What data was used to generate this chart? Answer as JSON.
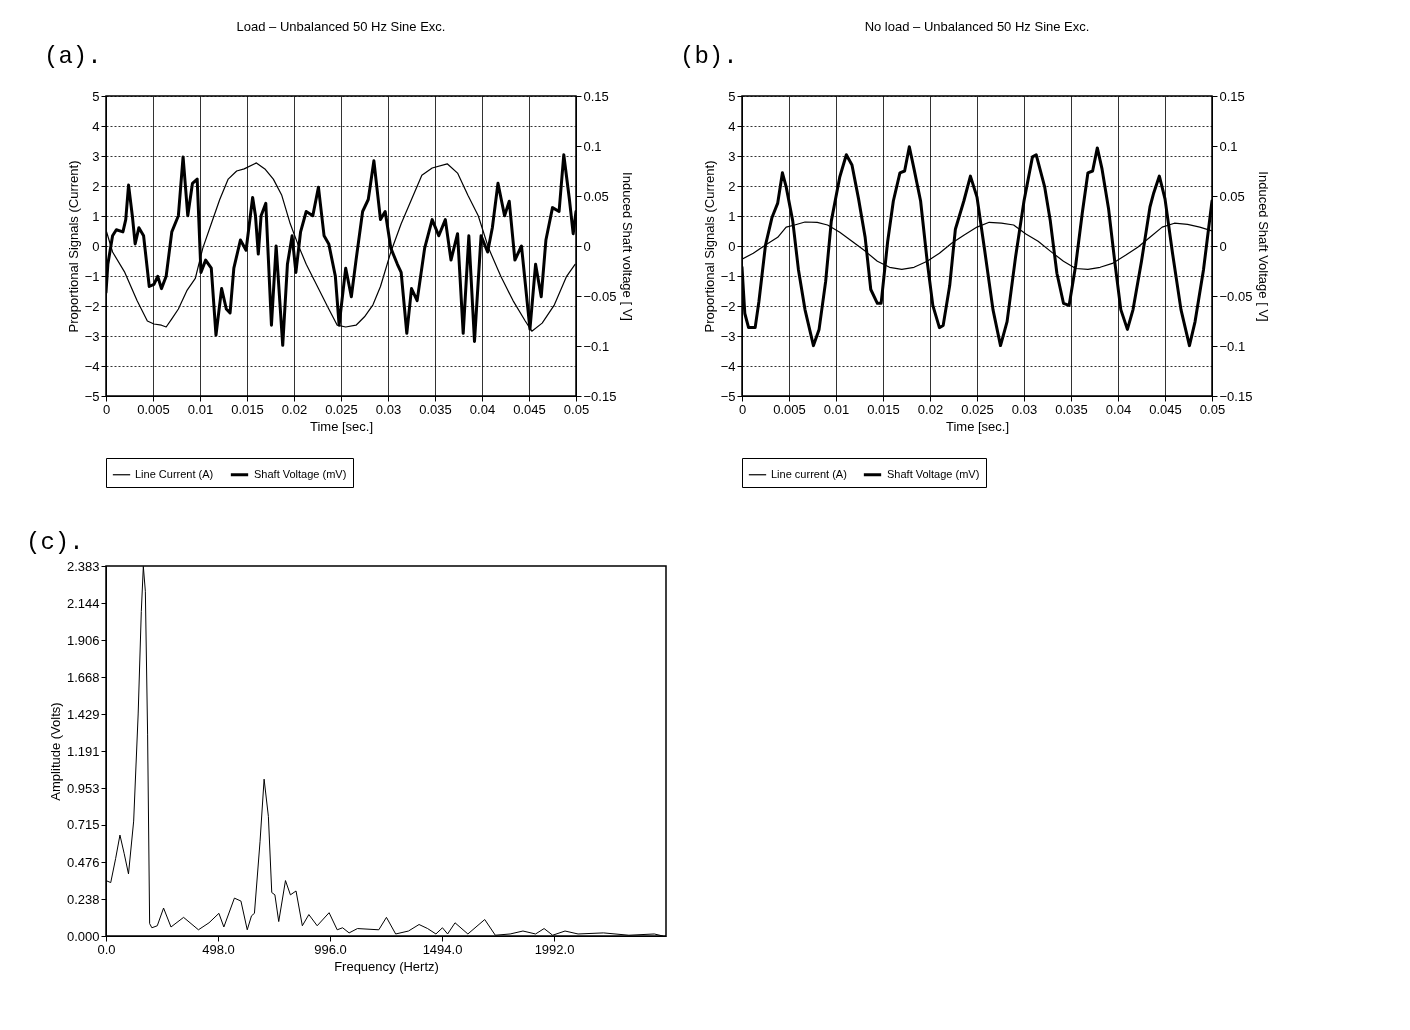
{
  "chart_data": [
    {
      "type": "line",
      "title": "Load – Unbalanced 50 Hz Sine Exc.",
      "xlabel": "Time [sec.]",
      "ylabel": "Proportional Signals (Current)",
      "y2label": "Induced Shaft voltage [ V]",
      "annotations": [
        "(a)."
      ],
      "xlim": [
        0,
        0.05
      ],
      "xticks": [
        0,
        0.005,
        0.01,
        0.015,
        0.02,
        0.025,
        0.03,
        0.035,
        0.04,
        0.045,
        0.05
      ],
      "ylim": [
        -5,
        5
      ],
      "yticks": [
        -5,
        -4,
        -3,
        -2,
        -1,
        0,
        1,
        2,
        3,
        4,
        5
      ],
      "y2lim": [
        -0.15,
        0.15
      ],
      "y2ticks": [
        -0.15,
        -0.1,
        -0.05,
        0,
        0.05,
        0.1,
        0.15
      ],
      "grid": true,
      "legend": "bottom",
      "series": [
        {
          "name": "Line Current (A)",
          "color": "#000000",
          "x": [
            0,
            0.0007,
            0.002,
            0.0033,
            0.0044,
            0.0051,
            0.0059,
            0.0064,
            0.007,
            0.0077,
            0.0086,
            0.0095,
            0.0103,
            0.0112,
            0.0121,
            0.013,
            0.0139,
            0.0147,
            0.016,
            0.0169,
            0.0178,
            0.0187,
            0.0196,
            0.0204,
            0.0213,
            0.0226,
            0.0237,
            0.0246,
            0.0255,
            0.0266,
            0.0275,
            0.0284,
            0.0292,
            0.0303,
            0.0314,
            0.0325,
            0.0336,
            0.0347,
            0.0363,
            0.0374,
            0.0385,
            0.0396,
            0.0407,
            0.042,
            0.0433,
            0.0446,
            0.0453,
            0.0464,
            0.0477,
            0.049,
            0.0499
          ],
          "values": [
            0.54,
            -0.2,
            -0.88,
            -1.82,
            -2.5,
            -2.6,
            -2.64,
            -2.7,
            -2.43,
            -2.1,
            -1.49,
            -1.08,
            -0.07,
            0.74,
            1.55,
            2.23,
            2.5,
            2.57,
            2.77,
            2.57,
            2.23,
            1.69,
            0.74,
            0.07,
            -0.61,
            -1.42,
            -2.1,
            -2.64,
            -2.7,
            -2.64,
            -2.36,
            -1.96,
            -1.35,
            -0.2,
            0.74,
            1.55,
            2.36,
            2.6,
            2.74,
            2.43,
            1.69,
            1.01,
            -0.07,
            -1.01,
            -1.82,
            -2.5,
            -2.84,
            -2.57,
            -1.96,
            -1.01,
            -0.61
          ]
        },
        {
          "name": "Shaft Voltage (mV)",
          "color": "#000000",
          "x": [
            0,
            0.0002,
            0.0007,
            0.0011,
            0.0018,
            0.0021,
            0.0024,
            0.0028,
            0.0031,
            0.0035,
            0.004,
            0.0046,
            0.0051,
            0.0055,
            0.0059,
            0.0064,
            0.007,
            0.0077,
            0.0082,
            0.0087,
            0.0092,
            0.0097,
            0.0101,
            0.0106,
            0.0112,
            0.0117,
            0.0123,
            0.0128,
            0.0132,
            0.0136,
            0.0143,
            0.0149,
            0.0156,
            0.0159,
            0.0162,
            0.0165,
            0.017,
            0.0176,
            0.0181,
            0.0188,
            0.0193,
            0.0198,
            0.0202,
            0.0207,
            0.0213,
            0.022,
            0.0226,
            0.0232,
            0.0237,
            0.0244,
            0.0248,
            0.0255,
            0.0261,
            0.0266,
            0.0273,
            0.0279,
            0.0285,
            0.0292,
            0.0297,
            0.0303,
            0.031,
            0.0314,
            0.032,
            0.0325,
            0.0331,
            0.0339,
            0.0347,
            0.0354,
            0.0361,
            0.0367,
            0.0374,
            0.038,
            0.0386,
            0.0392,
            0.0399,
            0.0406,
            0.0411,
            0.0417,
            0.0424,
            0.0429,
            0.0435,
            0.0442,
            0.0451,
            0.0457,
            0.0463,
            0.0468,
            0.0475,
            0.0482,
            0.0487,
            0.0493,
            0.0497,
            0.05
          ],
          "values": [
            -1.55,
            -0.6,
            0.34,
            0.54,
            0.47,
            0.88,
            2.03,
            1.01,
            0.07,
            0.61,
            0.34,
            -1.35,
            -1.28,
            -1.01,
            -1.42,
            -1.01,
            0.47,
            1.01,
            2.97,
            1.01,
            2.09,
            2.23,
            -0.88,
            -0.47,
            -0.74,
            -2.97,
            -1.42,
            -2.1,
            -2.23,
            -0.74,
            0.2,
            -0.14,
            1.62,
            1.01,
            -0.27,
            1.01,
            1.42,
            -2.64,
            0,
            -3.31,
            -0.61,
            0.34,
            -0.88,
            0.47,
            1.15,
            1.01,
            1.96,
            0.34,
            0.07,
            -1.01,
            -2.64,
            -0.74,
            -1.69,
            -0.47,
            1.15,
            1.55,
            2.84,
            0.88,
            1.15,
            -0.07,
            -0.61,
            -0.88,
            -2.91,
            -1.42,
            -1.82,
            -0.07,
            0.88,
            0.34,
            0.88,
            -0.47,
            0.41,
            -2.91,
            0.34,
            -3.18,
            0.34,
            -0.2,
            0.61,
            2.09,
            1.01,
            1.49,
            -0.47,
            0,
            -2.77,
            -0.61,
            -1.69,
            0.2,
            1.28,
            1.15,
            3.04,
            1.55,
            0.41,
            1.15
          ]
        }
      ]
    },
    {
      "type": "line",
      "title": "No load – Unbalanced 50 Hz Sine Exc.",
      "xlabel": "Time [sec.]",
      "ylabel": "Proportional Signals (Current)",
      "y2label": "Induced Shaft Voltage [ V]",
      "annotations": [
        "(b)."
      ],
      "xlim": [
        0,
        0.05
      ],
      "xticks": [
        0,
        0.005,
        0.01,
        0.015,
        0.02,
        0.025,
        0.03,
        0.035,
        0.04,
        0.045,
        0.05
      ],
      "ylim": [
        -5,
        5
      ],
      "yticks": [
        -5,
        -4,
        -3,
        -2,
        -1,
        0,
        1,
        2,
        3,
        4,
        5
      ],
      "y2lim": [
        -0.15,
        0.15
      ],
      "y2ticks": [
        -0.15,
        -0.1,
        -0.05,
        0,
        0.05,
        0.1,
        0.15
      ],
      "grid": true,
      "legend": "bottom",
      "series": [
        {
          "name": "Line current (A)",
          "color": "#000000",
          "x": [
            0,
            0.0012,
            0.0025,
            0.0038,
            0.0047,
            0.0056,
            0.0067,
            0.008,
            0.0091,
            0.0104,
            0.0117,
            0.0131,
            0.0144,
            0.0157,
            0.017,
            0.0183,
            0.0197,
            0.021,
            0.0223,
            0.0236,
            0.025,
            0.0263,
            0.0276,
            0.0289,
            0.0302,
            0.0315,
            0.0328,
            0.0342,
            0.0355,
            0.0368,
            0.0381,
            0.0394,
            0.0408,
            0.0421,
            0.0434,
            0.0447,
            0.046,
            0.0474,
            0.0487,
            0.05
          ],
          "values": [
            -0.44,
            -0.24,
            0.03,
            0.29,
            0.63,
            0.7,
            0.8,
            0.79,
            0.7,
            0.46,
            0.16,
            -0.17,
            -0.51,
            -0.71,
            -0.78,
            -0.71,
            -0.51,
            -0.24,
            0.09,
            0.36,
            0.63,
            0.79,
            0.76,
            0.7,
            0.4,
            0.16,
            -0.17,
            -0.51,
            -0.75,
            -0.78,
            -0.71,
            -0.58,
            -0.31,
            -0.04,
            0.29,
            0.63,
            0.76,
            0.72,
            0.63,
            0.5
          ]
        },
        {
          "name": "Shaft Voltage (mV)",
          "color": "#000000",
          "x": [
            0,
            0.0003,
            0.0007,
            0.0014,
            0.0018,
            0.0025,
            0.0032,
            0.0038,
            0.0043,
            0.0047,
            0.0054,
            0.006,
            0.0067,
            0.0076,
            0.0082,
            0.0089,
            0.0095,
            0.0104,
            0.0111,
            0.0117,
            0.0124,
            0.0131,
            0.0137,
            0.0144,
            0.0148,
            0.0155,
            0.0161,
            0.0168,
            0.0173,
            0.0178,
            0.0183,
            0.019,
            0.0197,
            0.0203,
            0.021,
            0.0214,
            0.0221,
            0.0227,
            0.0236,
            0.0243,
            0.025,
            0.0258,
            0.0267,
            0.0275,
            0.0282,
            0.0291,
            0.03,
            0.0309,
            0.0313,
            0.0322,
            0.0328,
            0.0335,
            0.0342,
            0.0348,
            0.0355,
            0.0362,
            0.0368,
            0.0373,
            0.0378,
            0.0383,
            0.039,
            0.0397,
            0.0403,
            0.041,
            0.0416,
            0.0425,
            0.0434,
            0.0438,
            0.0444,
            0.045,
            0.0458,
            0.0467,
            0.0476,
            0.0482,
            0.0491,
            0.05
          ],
          "values": [
            -0.71,
            -2.25,
            -2.72,
            -2.72,
            -1.85,
            0.03,
            0.96,
            1.43,
            2.44,
            1.97,
            0.83,
            -0.78,
            -2.12,
            -3.32,
            -2.78,
            -1.18,
            0.83,
            2.3,
            3.04,
            2.7,
            1.57,
            0.29,
            -1.45,
            -1.91,
            -1.91,
            0.16,
            1.5,
            2.44,
            2.5,
            3.31,
            2.57,
            1.5,
            -0.51,
            -1.98,
            -2.72,
            -2.65,
            -1.31,
            0.56,
            1.5,
            2.33,
            1.63,
            -0.11,
            -2.12,
            -3.32,
            -2.52,
            -0.37,
            1.5,
            2.97,
            3.04,
            1.97,
            0.83,
            -0.91,
            -1.91,
            -1.98,
            -0.64,
            1.1,
            2.44,
            2.5,
            3.27,
            2.57,
            1.23,
            -0.64,
            -2.12,
            -2.78,
            -2.12,
            -0.51,
            1.3,
            1.77,
            2.33,
            1.57,
            -0.24,
            -2.12,
            -3.32,
            -2.52,
            -0.78,
            1.5
          ]
        }
      ]
    },
    {
      "type": "line",
      "xlabel": "Frequency (Hertz)",
      "ylabel": "Amplitude (Volts)",
      "annotations": [
        "(c)."
      ],
      "xlim": [
        0,
        2490
      ],
      "xticks": [
        {
          "value": 0,
          "label": "0.0"
        },
        {
          "value": 498,
          "label": "498.0"
        },
        {
          "value": 996,
          "label": "996.0"
        },
        {
          "value": 1494,
          "label": "1494.0"
        },
        {
          "value": 1992,
          "label": "1992.0"
        }
      ],
      "ylim": [
        0,
        2.383
      ],
      "yticks": [
        {
          "value": 0,
          "label": "0.000"
        },
        0.238,
        0.476,
        0.715,
        0.953,
        1.191,
        1.429,
        1.668,
        1.906,
        2.144,
        2.383
      ],
      "series": [
        {
          "color": "#000000",
          "x": [
            0,
            21,
            43,
            62,
            81,
            100,
            123,
            143,
            157,
            166,
            175,
            185,
            194,
            204,
            228,
            256,
            289,
            345,
            411,
            458,
            502,
            524,
            571,
            600,
            628,
            647,
            660,
            685,
            703,
            722,
            737,
            751,
            768,
            798,
            820,
            845,
            873,
            902,
            939,
            992,
            1028,
            1052,
            1081,
            1118,
            1213,
            1247,
            1288,
            1345,
            1392,
            1430,
            1467,
            1496,
            1519,
            1552,
            1609,
            1684,
            1731,
            1797,
            1854,
            1910,
            1948,
            1986,
            2041,
            2099,
            2212,
            2325,
            2438,
            2476
          ],
          "values": [
            0.357,
            0.344,
            0.5,
            0.65,
            0.53,
            0.4,
            0.74,
            1.43,
            2.09,
            2.38,
            2.22,
            1.3,
            0.08,
            0.053,
            0.066,
            0.18,
            0.058,
            0.12,
            0.04,
            0.085,
            0.146,
            0.058,
            0.244,
            0.225,
            0.04,
            0.13,
            0.146,
            0.61,
            1.01,
            0.77,
            0.28,
            0.265,
            0.093,
            0.357,
            0.265,
            0.29,
            0.066,
            0.138,
            0.066,
            0.15,
            0.04,
            0.053,
            0.02,
            0.048,
            0.04,
            0.12,
            0.013,
            0.032,
            0.074,
            0.048,
            0.013,
            0.053,
            0.013,
            0.085,
            0.013,
            0.106,
            0.005,
            0.013,
            0.032,
            0.013,
            0.048,
            0.005,
            0.032,
            0.013,
            0.02,
            0.005,
            0.013,
            0
          ]
        }
      ]
    }
  ]
}
